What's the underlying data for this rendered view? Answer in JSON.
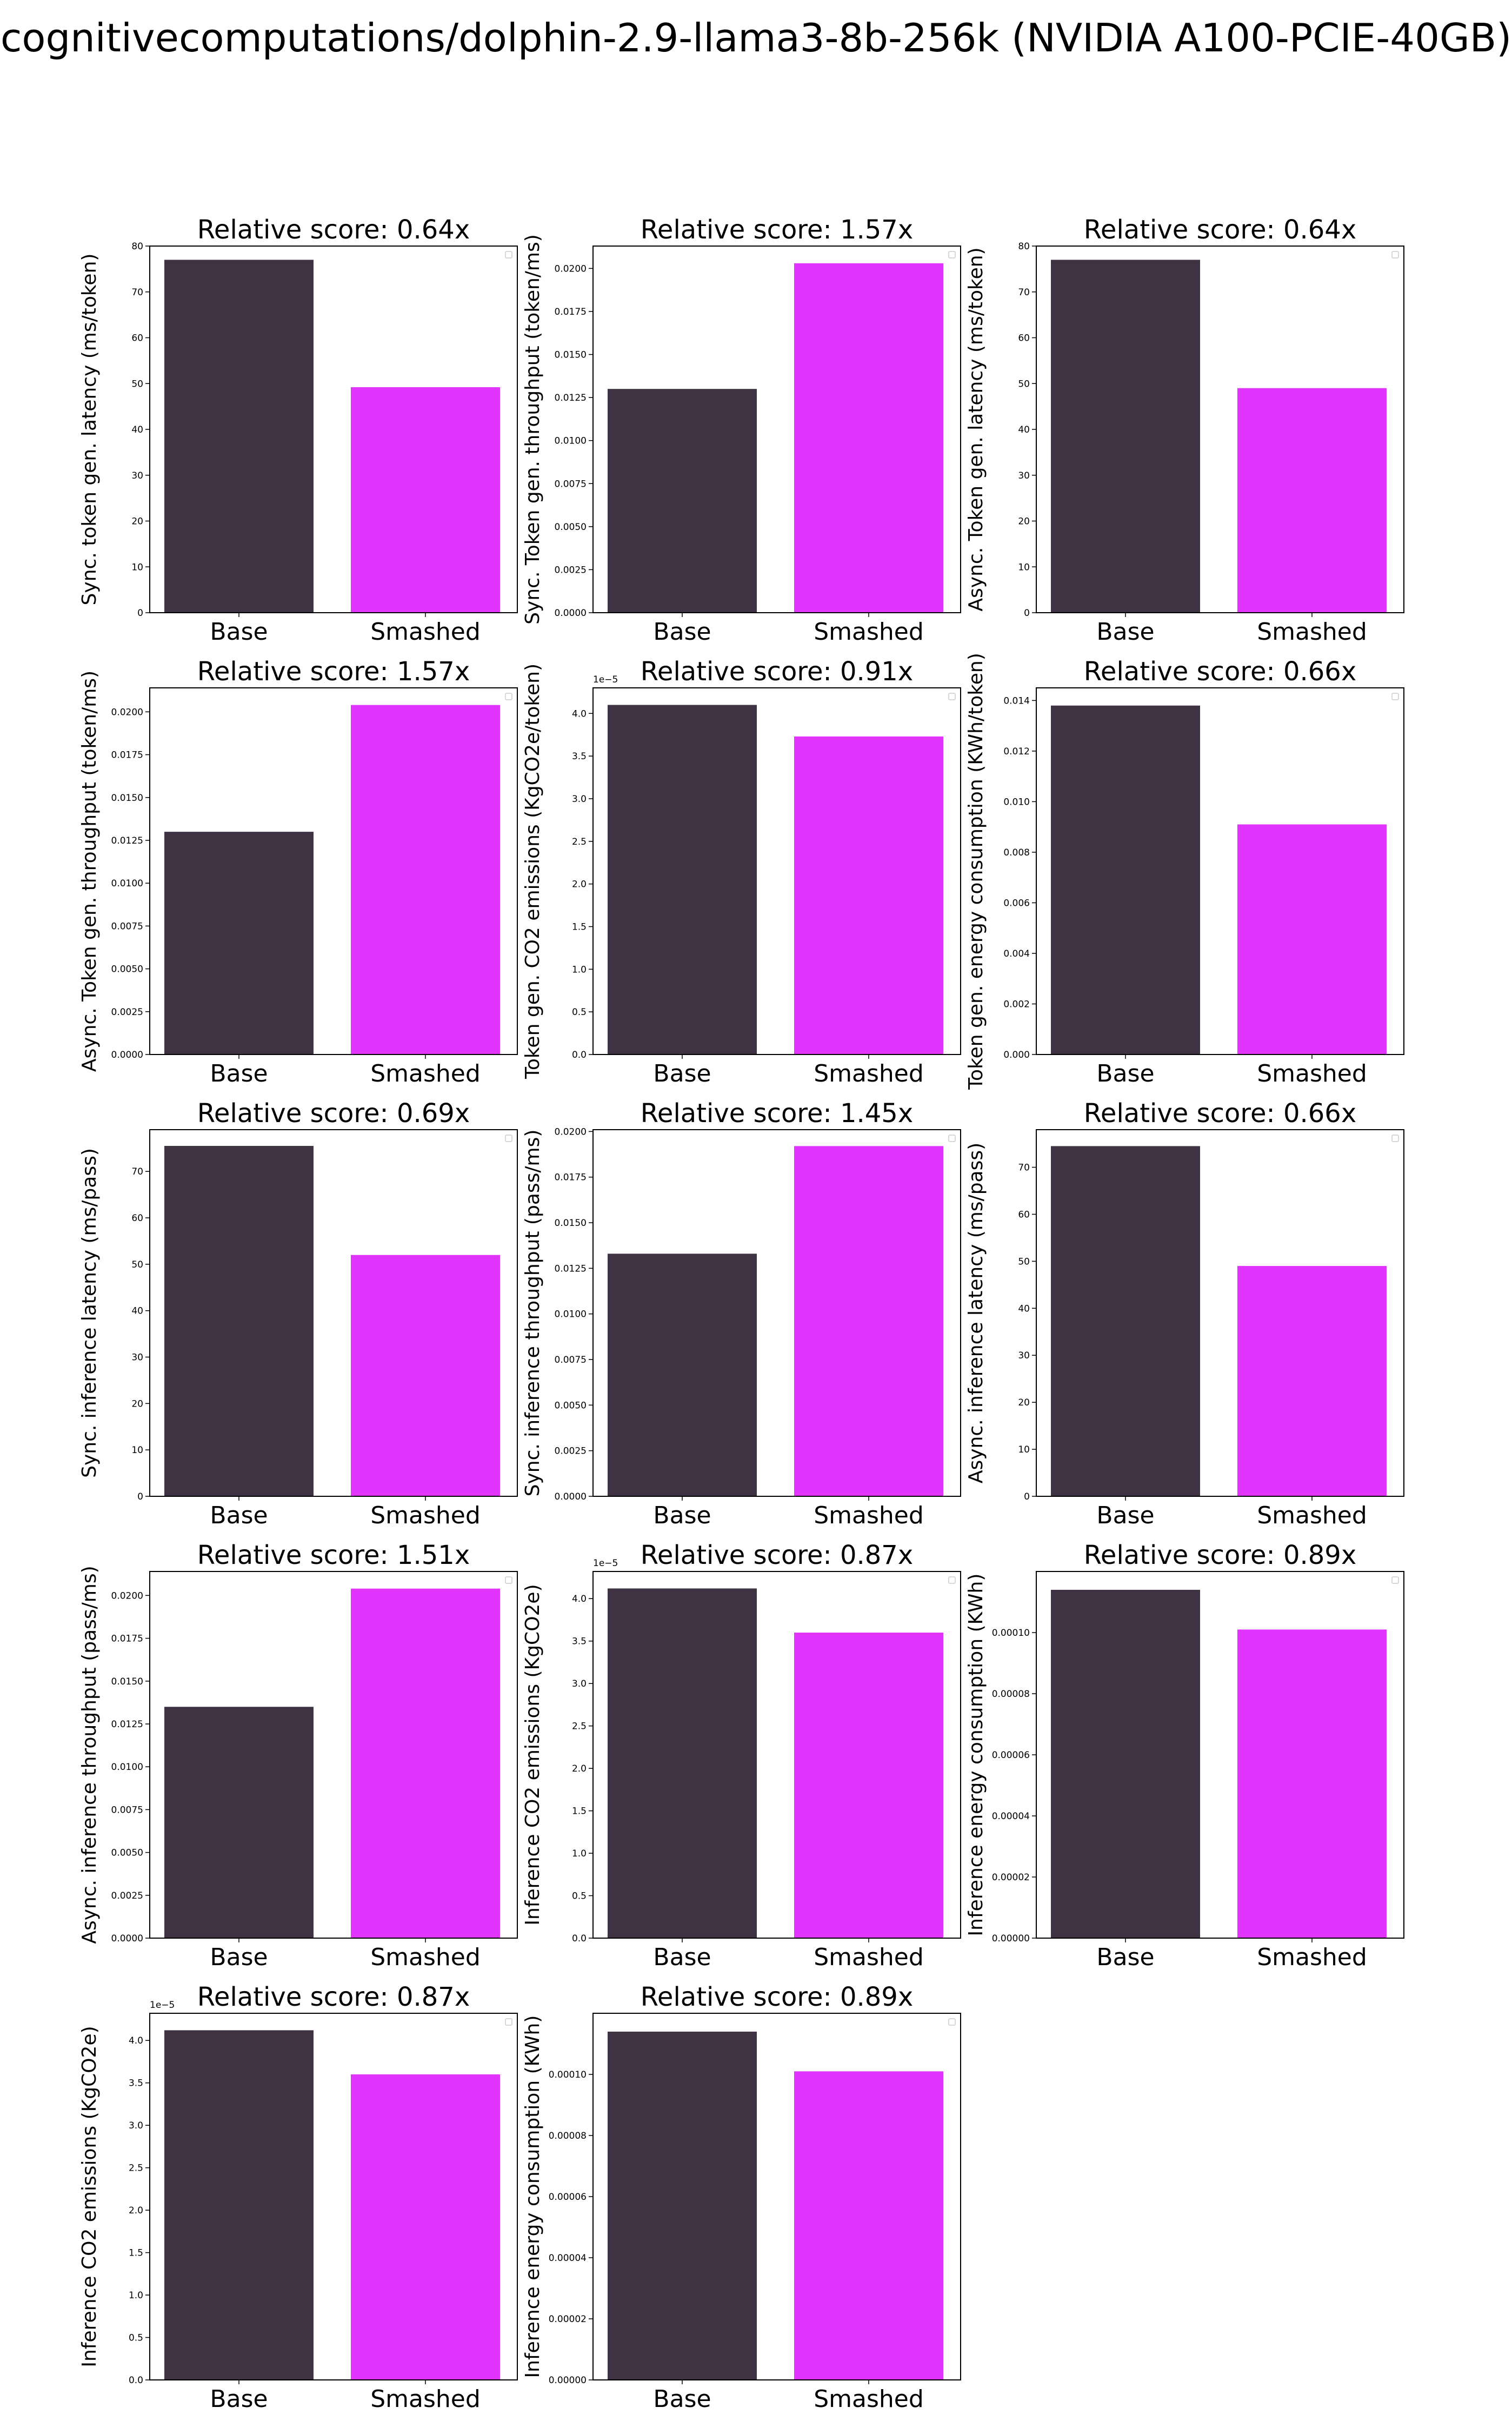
{
  "figure": {
    "title": "cognitivecomputations/dolphin-2.9-llama3-8b-256k (NVIDIA A100-PCIE-40GB)",
    "colors": {
      "base": "#3f3242",
      "smashed": "#e134fd",
      "axis": "#000000"
    }
  },
  "chart_data": [
    {
      "type": "bar",
      "title": "Relative score: 0.64x",
      "ylabel": "Sync. token gen. latency (ms/token)",
      "categories": [
        "Base",
        "Smashed"
      ],
      "values": [
        77.0,
        49.2
      ],
      "ylim": [
        0,
        80
      ],
      "yticks": [
        0,
        10,
        20,
        30,
        40,
        50,
        60,
        70,
        80
      ],
      "ytick_labels": [
        "0",
        "10",
        "20",
        "30",
        "40",
        "50",
        "60",
        "70",
        "80"
      ],
      "offset_text": "",
      "grid": false
    },
    {
      "type": "bar",
      "title": "Relative score: 1.57x",
      "ylabel": "Sync. Token gen. throughput (token/ms)",
      "categories": [
        "Base",
        "Smashed"
      ],
      "values": [
        0.013,
        0.0203
      ],
      "ylim": [
        0,
        0.0213
      ],
      "yticks": [
        0,
        0.0025,
        0.005,
        0.0075,
        0.01,
        0.0125,
        0.015,
        0.0175,
        0.02
      ],
      "ytick_labels": [
        "0.0000",
        "0.0025",
        "0.0050",
        "0.0075",
        "0.0100",
        "0.0125",
        "0.0150",
        "0.0175",
        "0.0200"
      ],
      "offset_text": "",
      "grid": false
    },
    {
      "type": "bar",
      "title": "Relative score: 0.64x",
      "ylabel": "Async. Token gen. latency (ms/token)",
      "categories": [
        "Base",
        "Smashed"
      ],
      "values": [
        77.0,
        49.0
      ],
      "ylim": [
        0,
        80
      ],
      "yticks": [
        0,
        10,
        20,
        30,
        40,
        50,
        60,
        70,
        80
      ],
      "ytick_labels": [
        "0",
        "10",
        "20",
        "30",
        "40",
        "50",
        "60",
        "70",
        "80"
      ],
      "offset_text": "",
      "grid": false
    },
    {
      "type": "bar",
      "title": "Relative score: 1.57x",
      "ylabel": "Async. Token gen. throughput (token/ms)",
      "categories": [
        "Base",
        "Smashed"
      ],
      "values": [
        0.013,
        0.0204
      ],
      "ylim": [
        0,
        0.0214
      ],
      "yticks": [
        0,
        0.0025,
        0.005,
        0.0075,
        0.01,
        0.0125,
        0.015,
        0.0175,
        0.02
      ],
      "ytick_labels": [
        "0.0000",
        "0.0025",
        "0.0050",
        "0.0075",
        "0.0100",
        "0.0125",
        "0.0150",
        "0.0175",
        "0.0200"
      ],
      "offset_text": "",
      "grid": false
    },
    {
      "type": "bar",
      "title": "Relative score: 0.91x",
      "ylabel": "Token gen. CO2 emissions (KgCO2e/token)",
      "categories": [
        "Base",
        "Smashed"
      ],
      "values": [
        4.1e-05,
        3.73e-05
      ],
      "ylim": [
        0,
        4.3e-05
      ],
      "yticks": [
        0,
        0.5,
        1.0,
        1.5,
        2.0,
        2.5,
        3.0,
        3.5,
        4.0
      ],
      "ytick_labels": [
        "0.0",
        "0.5",
        "1.0",
        "1.5",
        "2.0",
        "2.5",
        "3.0",
        "3.5",
        "4.0"
      ],
      "offset_text": "1e−5",
      "tick_scale": 1e-05,
      "grid": false
    },
    {
      "type": "bar",
      "title": "Relative score: 0.66x",
      "ylabel": "Token gen. energy consumption (KWh/token)",
      "categories": [
        "Base",
        "Smashed"
      ],
      "values": [
        0.0138,
        0.0091
      ],
      "ylim": [
        0,
        0.0145
      ],
      "yticks": [
        0,
        0.002,
        0.004,
        0.006,
        0.008,
        0.01,
        0.012,
        0.014
      ],
      "ytick_labels": [
        "0.000",
        "0.002",
        "0.004",
        "0.006",
        "0.008",
        "0.010",
        "0.012",
        "0.014"
      ],
      "offset_text": "",
      "grid": false
    },
    {
      "type": "bar",
      "title": "Relative score: 0.69x",
      "ylabel": "Sync. inference latency (ms/pass)",
      "categories": [
        "Base",
        "Smashed"
      ],
      "values": [
        75.5,
        52.0
      ],
      "ylim": [
        0,
        79
      ],
      "yticks": [
        0,
        10,
        20,
        30,
        40,
        50,
        60,
        70
      ],
      "ytick_labels": [
        "0",
        "10",
        "20",
        "30",
        "40",
        "50",
        "60",
        "70"
      ],
      "offset_text": "",
      "grid": false
    },
    {
      "type": "bar",
      "title": "Relative score: 1.45x",
      "ylabel": "Sync. inference throughput (pass/ms)",
      "categories": [
        "Base",
        "Smashed"
      ],
      "values": [
        0.0133,
        0.0192
      ],
      "ylim": [
        0,
        0.0201
      ],
      "yticks": [
        0,
        0.0025,
        0.005,
        0.0075,
        0.01,
        0.0125,
        0.015,
        0.0175,
        0.02
      ],
      "ytick_labels": [
        "0.0000",
        "0.0025",
        "0.0050",
        "0.0075",
        "0.0100",
        "0.0125",
        "0.0150",
        "0.0175",
        "0.0200"
      ],
      "offset_text": "",
      "grid": false
    },
    {
      "type": "bar",
      "title": "Relative score: 0.66x",
      "ylabel": "Async. inference latency (ms/pass)",
      "categories": [
        "Base",
        "Smashed"
      ],
      "values": [
        74.5,
        49.0
      ],
      "ylim": [
        0,
        78
      ],
      "yticks": [
        0,
        10,
        20,
        30,
        40,
        50,
        60,
        70
      ],
      "ytick_labels": [
        "0",
        "10",
        "20",
        "30",
        "40",
        "50",
        "60",
        "70"
      ],
      "offset_text": "",
      "grid": false
    },
    {
      "type": "bar",
      "title": "Relative score: 1.51x",
      "ylabel": "Async. inference throughput (pass/ms)",
      "categories": [
        "Base",
        "Smashed"
      ],
      "values": [
        0.0135,
        0.0204
      ],
      "ylim": [
        0,
        0.0214
      ],
      "yticks": [
        0,
        0.0025,
        0.005,
        0.0075,
        0.01,
        0.0125,
        0.015,
        0.0175,
        0.02
      ],
      "ytick_labels": [
        "0.0000",
        "0.0025",
        "0.0050",
        "0.0075",
        "0.0100",
        "0.0125",
        "0.0150",
        "0.0175",
        "0.0200"
      ],
      "offset_text": "",
      "grid": false
    },
    {
      "type": "bar",
      "title": "Relative score: 0.87x",
      "ylabel": "Inference CO2 emissions (KgCO2e)",
      "categories": [
        "Base",
        "Smashed"
      ],
      "values": [
        4.12e-05,
        3.6e-05
      ],
      "ylim": [
        0,
        4.32e-05
      ],
      "yticks": [
        0,
        0.5,
        1.0,
        1.5,
        2.0,
        2.5,
        3.0,
        3.5,
        4.0
      ],
      "ytick_labels": [
        "0.0",
        "0.5",
        "1.0",
        "1.5",
        "2.0",
        "2.5",
        "3.0",
        "3.5",
        "4.0"
      ],
      "offset_text": "1e−5",
      "tick_scale": 1e-05,
      "grid": false
    },
    {
      "type": "bar",
      "title": "Relative score: 0.89x",
      "ylabel": "Inference energy consumption (KWh)",
      "categories": [
        "Base",
        "Smashed"
      ],
      "values": [
        0.000114,
        0.000101
      ],
      "ylim": [
        0,
        0.00012
      ],
      "yticks": [
        0,
        2e-05,
        4e-05,
        6e-05,
        8e-05,
        0.0001
      ],
      "ytick_labels": [
        "0.00000",
        "0.00002",
        "0.00004",
        "0.00006",
        "0.00008",
        "0.00010"
      ],
      "offset_text": "",
      "grid": false
    },
    {
      "type": "bar",
      "title": "Relative score: 0.87x",
      "ylabel": "Inference CO2 emissions (KgCO2e)",
      "categories": [
        "Base",
        "Smashed"
      ],
      "values": [
        4.12e-05,
        3.6e-05
      ],
      "ylim": [
        0,
        4.32e-05
      ],
      "yticks": [
        0,
        0.5,
        1.0,
        1.5,
        2.0,
        2.5,
        3.0,
        3.5,
        4.0
      ],
      "ytick_labels": [
        "0.0",
        "0.5",
        "1.0",
        "1.5",
        "2.0",
        "2.5",
        "3.0",
        "3.5",
        "4.0"
      ],
      "offset_text": "1e−5",
      "tick_scale": 1e-05,
      "grid": false
    },
    {
      "type": "bar",
      "title": "Relative score: 0.89x",
      "ylabel": "Inference energy consumption (KWh)",
      "categories": [
        "Base",
        "Smashed"
      ],
      "values": [
        0.000114,
        0.000101
      ],
      "ylim": [
        0,
        0.00012
      ],
      "yticks": [
        0,
        2e-05,
        4e-05,
        6e-05,
        8e-05,
        0.0001
      ],
      "ytick_labels": [
        "0.00000",
        "0.00002",
        "0.00004",
        "0.00006",
        "0.00008",
        "0.00010"
      ],
      "offset_text": "",
      "grid": false
    }
  ]
}
